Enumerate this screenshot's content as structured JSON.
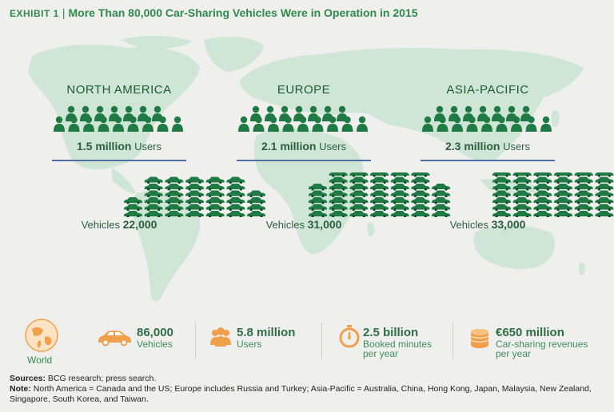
{
  "title": {
    "exhibit": "Exhibit 1",
    "text": "More Than 80,000 Car-Sharing Vehicles Were in Operation in 2015"
  },
  "colors": {
    "accent": "#2f8a4c",
    "map": "#cfe6d6",
    "icon": "#1f7a44",
    "orange": "#f0a04b",
    "divider": "#4f6fa0"
  },
  "regions": [
    {
      "name": "NORTH AMERICA",
      "users_value": "1.5 million",
      "users_label": "Users",
      "vehicles_label": "Vehicles",
      "vehicles_value": "22,000"
    },
    {
      "name": "EUROPE",
      "users_value": "2.1 million",
      "users_label": "Users",
      "vehicles_label": "Vehicles",
      "vehicles_value": "31,000"
    },
    {
      "name": "ASIA-PACIFIC",
      "users_value": "2.3 million",
      "users_label": "Users",
      "vehicles_label": "Vehicles",
      "vehicles_value": "33,000"
    }
  ],
  "world": {
    "label": "World",
    "stats": [
      {
        "icon": "car-icon",
        "value": "86,000",
        "label1": "Vehicles",
        "label2": ""
      },
      {
        "icon": "users-icon",
        "value": "5.8 million",
        "label1": "Users",
        "label2": ""
      },
      {
        "icon": "stopwatch-icon",
        "value": "2.5 billion",
        "label1": "Booked minutes",
        "label2": "per year"
      },
      {
        "icon": "coins-icon",
        "value": "€650 million",
        "label1": "Car-sharing revenues",
        "label2": "per year"
      }
    ]
  },
  "chart_data": {
    "type": "table",
    "title": "More Than 80,000 Car-Sharing Vehicles Were in Operation in 2015",
    "categories": [
      "NORTH AMERICA",
      "EUROPE",
      "ASIA-PACIFIC"
    ],
    "series": [
      {
        "name": "Users",
        "values": [
          1.5,
          2.1,
          2.3
        ]
      },
      {
        "name": "Vehicles",
        "values": [
          22000,
          31000,
          33000
        ]
      }
    ]
  },
  "footer": {
    "sources_label": "Sources:",
    "sources_text": "BCG research; press search.",
    "note_label": "Note:",
    "note_text": "North America = Canada and the US; Europe includes Russia and Turkey; Asia-Pacific = Australia, China, Hong Kong, Japan, Malaysia, New Zealand, Singapore, South Korea, and Taiwan."
  }
}
